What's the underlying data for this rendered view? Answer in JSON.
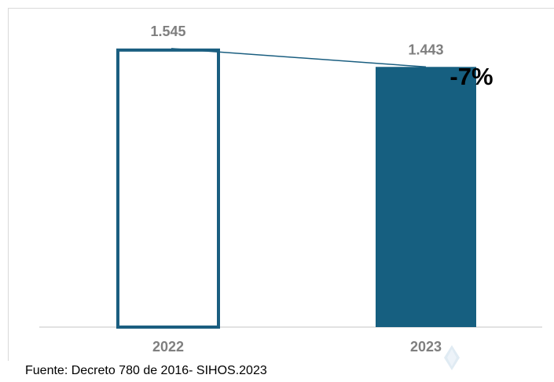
{
  "chart_data": {
    "type": "bar",
    "categories": [
      "2022",
      "2023"
    ],
    "values": [
      1545,
      1443
    ],
    "data_labels": [
      "1.545",
      "1.443"
    ],
    "annotation": "-7%",
    "ylim": [
      0,
      1640
    ],
    "grid": false,
    "colors": {
      "bar_2022_fill": "#ffffff",
      "bar_2022_stroke": "#1a5e80",
      "bar_2023_fill": "#165f80",
      "trend_line": "#1a5e80",
      "label_text": "#7f7f7f",
      "annotation_text": "#000000",
      "axis": "#d9d9d9"
    }
  },
  "source_note": "Fuente: Decreto 780 de 2016- SIHOS.2023"
}
